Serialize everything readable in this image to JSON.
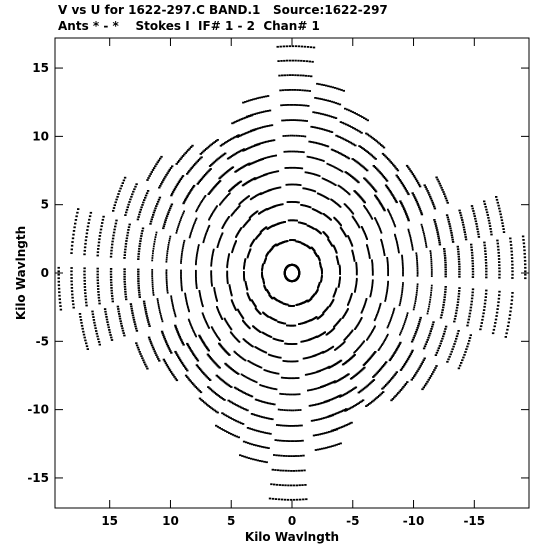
{
  "header": {
    "line1": "V vs U for 1622-297.C BAND.1   Source:1622-297",
    "line2": "Ants * - *    Stokes I  IF# 1 - 2  Chan# 1"
  },
  "chart_data": {
    "type": "scatter",
    "title": "V vs U for 1622-297.C BAND.1   Source:1622-297",
    "subtitle": "Ants * - *    Stokes I  IF# 1 - 2  Chan# 1",
    "xlabel": "Kilo Wavlngth",
    "ylabel": "Kilo Wavlngth",
    "x_axis_reversed": true,
    "xlim": [
      19.5,
      -19.5
    ],
    "ylim": [
      -17.2,
      17.2
    ],
    "xticks": [
      15,
      10,
      5,
      0,
      -5,
      -10,
      -15
    ],
    "yticks": [
      15,
      10,
      5,
      0,
      -5,
      -10,
      -15
    ],
    "xtick_labels": [
      "15",
      "10",
      "5",
      "0",
      "-5",
      "-10",
      "-15"
    ],
    "ytick_labels": [
      "15",
      "10",
      "5",
      "0",
      "-5",
      "-10",
      "-15"
    ],
    "grid": false,
    "marker_color": "#000000",
    "point_symmetric": true,
    "baseline_tracks": [
      {
        "theta": [
          1.5,
          1.68
        ],
        "r_range": [
          0.6,
          16.6
        ]
      },
      {
        "theta": [
          1.26,
          1.42
        ],
        "r_range": [
          0.6,
          13.1
        ]
      },
      {
        "theta": [
          1.15,
          1.29
        ],
        "r_range": [
          0.6,
          12.0
        ]
      },
      {
        "theta": [
          1.01,
          1.16
        ],
        "r_range": [
          0.6,
          11.0
        ]
      },
      {
        "theta": [
          0.86,
          1.01
        ],
        "r_range": [
          0.6,
          11.5
        ]
      },
      {
        "theta": [
          0.7,
          0.85
        ],
        "r_range": [
          0.6,
          12.4
        ]
      },
      {
        "theta": [
          0.52,
          0.67
        ],
        "r_range": [
          0.6,
          13.7
        ]
      },
      {
        "theta": [
          0.3,
          0.47
        ],
        "r_range": [
          0.6,
          15.4
        ]
      },
      {
        "theta": [
          0.08,
          0.26
        ],
        "r_range": [
          0.6,
          18.2
        ]
      },
      {
        "theta": [
          -0.14,
          0.02
        ],
        "r_range": [
          0.6,
          19.2
        ]
      },
      {
        "theta": [
          -0.32,
          -0.17
        ],
        "r_range": [
          0.6,
          17.7
        ]
      },
      {
        "theta": [
          1.72,
          1.88
        ],
        "r_range": [
          0.6,
          14.0
        ]
      },
      {
        "theta": [
          1.92,
          2.08
        ],
        "r_range": [
          0.6,
          12.8
        ]
      },
      {
        "theta": [
          2.11,
          2.26
        ],
        "r_range": [
          0.6,
          11.9
        ]
      },
      {
        "theta": [
          2.28,
          2.43
        ],
        "r_range": [
          0.6,
          11.5
        ]
      },
      {
        "theta": [
          2.45,
          2.6
        ],
        "r_range": [
          0.6,
          12.3
        ]
      },
      {
        "theta": [
          2.61,
          2.76
        ],
        "r_range": [
          0.6,
          13.8
        ]
      }
    ]
  }
}
